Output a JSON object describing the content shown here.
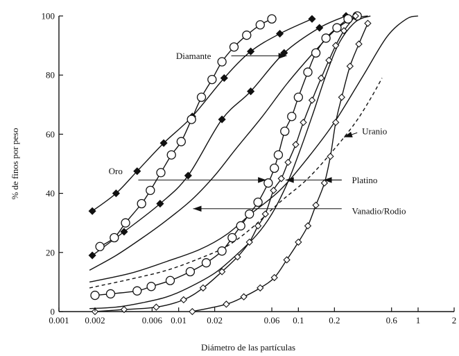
{
  "chart_data": {
    "type": "line",
    "title": "",
    "xlabel": "Diámetro de las partículas",
    "ylabel": "% de finos por peso",
    "x_scale": "log",
    "xlim": [
      0.001,
      2
    ],
    "ylim": [
      0,
      100
    ],
    "grid": false,
    "x_ticks": [
      {
        "value": 0.001,
        "label": "0.001"
      },
      {
        "value": 0.002,
        "label": "0.002"
      },
      {
        "value": 0.006,
        "label": "0.006"
      },
      {
        "value": 0.01,
        "label": "0.01"
      },
      {
        "value": 0.02,
        "label": "0.02"
      },
      {
        "value": 0.06,
        "label": "0.06"
      },
      {
        "value": 0.1,
        "label": "0.1"
      },
      {
        "value": 0.2,
        "label": "0.2"
      },
      {
        "value": 0.6,
        "label": "0.6"
      },
      {
        "value": 1,
        "label": "1"
      },
      {
        "value": 2,
        "label": "2"
      }
    ],
    "y_ticks": [
      {
        "value": 0,
        "label": "0"
      },
      {
        "value": 20,
        "label": "20"
      },
      {
        "value": 40,
        "label": "40"
      },
      {
        "value": 60,
        "label": "60"
      },
      {
        "value": 80,
        "label": "80"
      },
      {
        "value": 100,
        "label": "100"
      }
    ],
    "annotations": [
      {
        "text": "Diamante",
        "x": 0.0095,
        "y": 86.5
      },
      {
        "text": "Oro",
        "x": 0.0026,
        "y": 47.5
      },
      {
        "text": "Platino",
        "x": 0.28,
        "y": 44.5
      },
      {
        "text": "Uranio",
        "x": 0.34,
        "y": 61
      },
      {
        "text": "Vanadio/Rodio",
        "x": 0.28,
        "y": 34
      }
    ],
    "arrows": [
      {
        "x1": 0.0275,
        "y1": 86.5,
        "x2": 0.08,
        "y2": 86.5
      },
      {
        "x1": 0.0046,
        "y1": 44.5,
        "x2": 0.054,
        "y2": 44.5
      },
      {
        "x1": 0.23,
        "y1": 44.5,
        "x2": 0.078,
        "y2": 44.5
      },
      {
        "x1": 0.23,
        "y1": 44.5,
        "x2": 0.162,
        "y2": 44.5
      },
      {
        "x1": 0.23,
        "y1": 34.8,
        "x2": 0.0132,
        "y2": 34.8
      },
      {
        "x1": 0.31,
        "y1": 60.5,
        "x2": 0.24,
        "y2": 59
      }
    ],
    "series": [
      {
        "marker": "filled-diamond",
        "style": "solid",
        "x": [
          0.0019,
          0.003,
          0.0045,
          0.0075,
          0.013,
          0.024,
          0.04,
          0.07,
          0.13
        ],
        "y": [
          34,
          40,
          47.5,
          57,
          66,
          79,
          88,
          94,
          99
        ]
      },
      {
        "marker": "filled-diamond",
        "style": "solid",
        "x": [
          0.0019,
          0.0035,
          0.007,
          0.012,
          0.023,
          0.04,
          0.076,
          0.15,
          0.25
        ],
        "y": [
          19,
          27,
          36.5,
          46,
          65,
          74.5,
          87.5,
          96,
          100
        ]
      },
      {
        "marker": "open-circle",
        "style": "solid",
        "x": [
          0.0022,
          0.0029,
          0.0036,
          0.0049,
          0.0058,
          0.0071,
          0.0087,
          0.0105,
          0.0128,
          0.0155,
          0.019,
          0.023,
          0.029,
          0.037,
          0.048,
          0.06
        ],
        "y": [
          22,
          25,
          30,
          36.5,
          41,
          47,
          53,
          57.5,
          65,
          72.5,
          78.5,
          84.5,
          89.5,
          93.5,
          97,
          99
        ]
      },
      {
        "marker": "open-circle",
        "style": "solid",
        "x": [
          0.002,
          0.0027,
          0.0045,
          0.0059,
          0.0085,
          0.0125,
          0.017,
          0.023,
          0.028,
          0.033,
          0.039,
          0.046,
          0.056,
          0.063,
          0.068,
          0.077,
          0.088,
          0.1,
          0.12,
          0.14,
          0.17,
          0.21,
          0.26,
          0.31
        ],
        "y": [
          5.5,
          6,
          7,
          8.5,
          10.5,
          13.5,
          16.5,
          20.5,
          25,
          29,
          33,
          37,
          43.5,
          48.5,
          53,
          61,
          66,
          72.5,
          81,
          87.5,
          92.5,
          96,
          99,
          100
        ]
      },
      {
        "marker": "open-diamond",
        "style": "solid",
        "x": [
          0.002,
          0.0035,
          0.0065,
          0.011,
          0.016,
          0.023,
          0.031,
          0.039,
          0.046,
          0.053,
          0.062,
          0.072,
          0.082,
          0.095,
          0.11,
          0.13,
          0.155,
          0.18,
          0.205,
          0.24,
          0.3
        ],
        "y": [
          0,
          0.7,
          1.5,
          4,
          8,
          13.5,
          18.5,
          23.5,
          29,
          33,
          41,
          45,
          50.5,
          56.5,
          64,
          71.5,
          79,
          85,
          90,
          95,
          100
        ]
      },
      {
        "marker": "open-diamond",
        "style": "solid",
        "x": [
          0.013,
          0.025,
          0.035,
          0.048,
          0.063,
          0.08,
          0.1,
          0.12,
          0.14,
          0.165,
          0.185,
          0.205,
          0.23,
          0.27,
          0.32,
          0.38
        ],
        "y": [
          0,
          2.5,
          5,
          8,
          11.5,
          17.5,
          23.5,
          29,
          36,
          43.5,
          52.5,
          64,
          72.5,
          83,
          90.5,
          97.5
        ]
      },
      {
        "marker": "none",
        "style": "solid",
        "x": [
          0.0018,
          0.003,
          0.005,
          0.008,
          0.013,
          0.02,
          0.03,
          0.05,
          0.08,
          0.13,
          0.2,
          0.28,
          0.38
        ],
        "y": [
          14,
          19,
          25,
          31,
          38,
          46,
          55,
          66,
          77,
          87,
          95,
          99,
          100
        ]
      },
      {
        "marker": "none",
        "style": "solid",
        "x": [
          0.0018,
          0.004,
          0.008,
          0.015,
          0.025,
          0.04,
          0.07,
          0.12,
          0.2,
          0.35,
          0.55,
          0.8,
          1.0
        ],
        "y": [
          10,
          13,
          17,
          21,
          26,
          33,
          41,
          52,
          64,
          80,
          93,
          99,
          100
        ]
      },
      {
        "marker": "none",
        "style": "dashed",
        "x": [
          0.0018,
          0.004,
          0.008,
          0.015,
          0.025,
          0.04,
          0.07,
          0.12,
          0.2,
          0.3,
          0.4,
          0.5
        ],
        "y": [
          8,
          11,
          14,
          18,
          22,
          28,
          37,
          45,
          55,
          64,
          72,
          79
        ]
      },
      {
        "marker": "none",
        "style": "solid",
        "x": [
          0.0018,
          0.003,
          0.005,
          0.008,
          0.012,
          0.02,
          0.03,
          0.045,
          0.06,
          0.08,
          0.1,
          0.13,
          0.17,
          0.22,
          0.3,
          0.4
        ],
        "y": [
          1,
          1.5,
          3,
          5,
          8,
          13,
          19,
          26,
          33,
          43,
          53,
          66,
          80,
          91,
          98,
          100
        ]
      }
    ]
  }
}
